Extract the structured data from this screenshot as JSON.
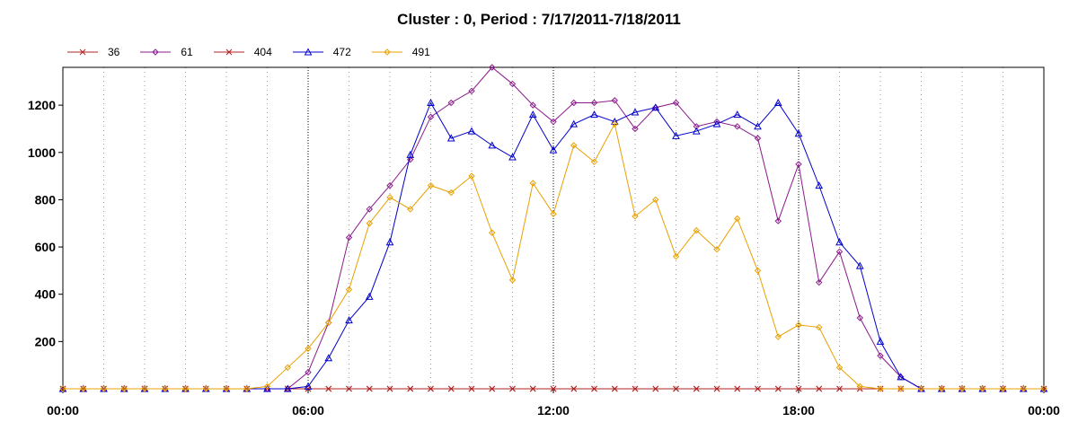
{
  "chart_data": {
    "type": "line",
    "title": "Cluster : 0, Period : 7/17/2011-7/18/2011",
    "xlabel": "",
    "ylabel": "",
    "x_ticks": [
      "00:00",
      "06:00",
      "12:00",
      "18:00",
      "00:00"
    ],
    "y_ticks": [
      200,
      400,
      600,
      800,
      1000,
      1200
    ],
    "xlim_hours": [
      0,
      24
    ],
    "ylim": [
      0,
      1360
    ],
    "grid": "vertical dotted every hour",
    "legend_position": "top-left",
    "x_hours": [
      0,
      0.5,
      1,
      1.5,
      2,
      2.5,
      3,
      3.5,
      4,
      4.5,
      5,
      5.5,
      6,
      6.5,
      7,
      7.5,
      8,
      8.5,
      9,
      9.5,
      10,
      10.5,
      11,
      11.5,
      12,
      12.5,
      13,
      13.5,
      14,
      14.5,
      15,
      15.5,
      16,
      16.5,
      17,
      17.5,
      18,
      18.5,
      19,
      19.5,
      20,
      20.5,
      21,
      21.5,
      22,
      22.5,
      23,
      23.5,
      24
    ],
    "series": [
      {
        "name": "36",
        "color": "#b22222",
        "marker": "x",
        "values": [
          0,
          0,
          0,
          0,
          0,
          0,
          0,
          0,
          0,
          0,
          0,
          0,
          0,
          0,
          0,
          0,
          0,
          0,
          0,
          0,
          0,
          0,
          0,
          0,
          0,
          0,
          0,
          0,
          0,
          0,
          0,
          0,
          0,
          0,
          0,
          0,
          0,
          0,
          0,
          0,
          0,
          0,
          0,
          0,
          0,
          0,
          0,
          0,
          0
        ]
      },
      {
        "name": "61",
        "color": "#8b1a8b",
        "marker": "diamond",
        "values": [
          0,
          0,
          0,
          0,
          0,
          0,
          0,
          0,
          0,
          0,
          0,
          0,
          70,
          280,
          640,
          760,
          860,
          970,
          1150,
          1210,
          1260,
          1360,
          1290,
          1200,
          1130,
          1210,
          1210,
          1220,
          1100,
          1190,
          1210,
          1110,
          1130,
          1110,
          1060,
          710,
          950,
          450,
          580,
          300,
          140,
          50,
          0,
          0,
          0,
          0,
          0,
          0,
          0
        ]
      },
      {
        "name": "404",
        "color": "#b22222",
        "marker": "x",
        "values": [
          0,
          0,
          0,
          0,
          0,
          0,
          0,
          0,
          0,
          0,
          0,
          0,
          0,
          0,
          0,
          0,
          0,
          0,
          0,
          0,
          0,
          0,
          0,
          0,
          0,
          0,
          0,
          0,
          0,
          0,
          0,
          0,
          0,
          0,
          0,
          0,
          0,
          0,
          0,
          0,
          0,
          0,
          0,
          0,
          0,
          0,
          0,
          0,
          0
        ]
      },
      {
        "name": "472",
        "color": "#0000cc",
        "marker": "triangle",
        "values": [
          0,
          0,
          0,
          0,
          0,
          0,
          0,
          0,
          0,
          0,
          0,
          0,
          10,
          130,
          290,
          390,
          620,
          990,
          1210,
          1060,
          1090,
          1030,
          980,
          1160,
          1010,
          1120,
          1160,
          1130,
          1170,
          1190,
          1070,
          1090,
          1120,
          1160,
          1110,
          1210,
          1080,
          860,
          620,
          520,
          200,
          50,
          0,
          0,
          0,
          0,
          0,
          0,
          0
        ]
      },
      {
        "name": "491",
        "color": "#e8a000",
        "marker": "diamond",
        "values": [
          0,
          0,
          0,
          0,
          0,
          0,
          0,
          0,
          0,
          0,
          10,
          90,
          170,
          280,
          420,
          700,
          810,
          760,
          860,
          830,
          900,
          660,
          460,
          870,
          740,
          1030,
          960,
          1120,
          730,
          800,
          560,
          670,
          590,
          720,
          500,
          220,
          270,
          260,
          90,
          10,
          0,
          0,
          0,
          0,
          0,
          0,
          0,
          0,
          0
        ]
      }
    ]
  }
}
